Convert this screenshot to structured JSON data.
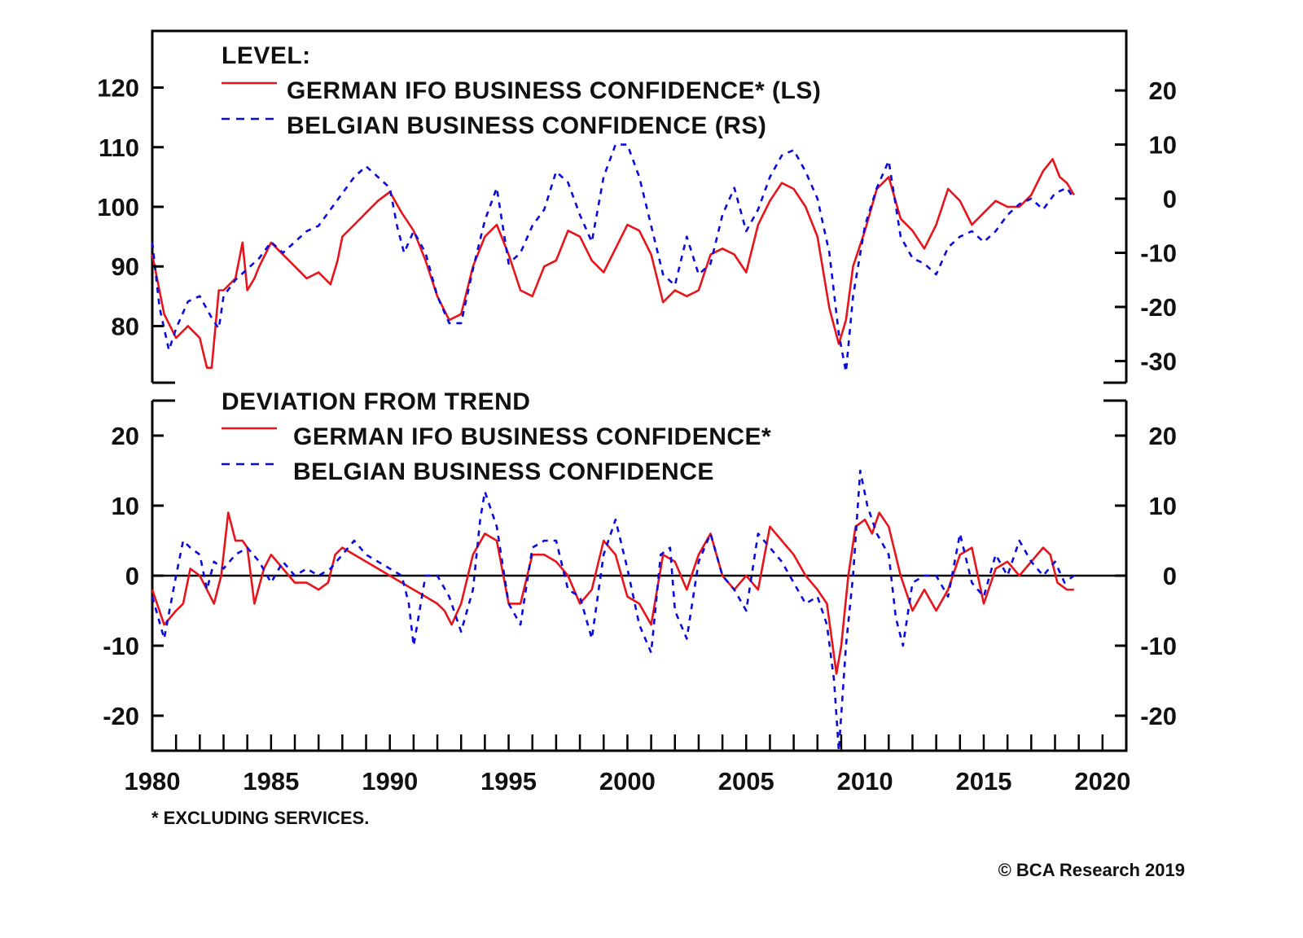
{
  "chart_data": [
    {
      "type": "line",
      "panel": "top",
      "title": "LEVEL:",
      "xlabel": "",
      "x_ticks": [
        "1980",
        "1985",
        "1990",
        "1995",
        "2000",
        "2005",
        "2010",
        "2015",
        "2020"
      ],
      "xlim": [
        1980,
        2021
      ],
      "left_axis": {
        "ticks": [
          "120",
          "110",
          "100",
          "90",
          "80"
        ],
        "ylim": [
          70.5,
          129.5
        ]
      },
      "right_axis": {
        "ticks": [
          "20",
          "10",
          "0",
          "-10",
          "-20",
          "-30"
        ],
        "ylim": [
          -34,
          31
        ]
      },
      "grid": false,
      "legend_position": "top-left",
      "series": [
        {
          "name": "GERMAN IFO BUSINESS CONFIDENCE* (LS)",
          "axis": "left",
          "color": "#e8141b",
          "style": "solid",
          "x": [
            1980.0,
            1980.5,
            1981.0,
            1981.5,
            1982.0,
            1982.3,
            1982.5,
            1982.8,
            1983.0,
            1983.5,
            1983.8,
            1984.0,
            1984.3,
            1984.5,
            1985.0,
            1985.5,
            1986.0,
            1986.5,
            1987.0,
            1987.5,
            1987.8,
            1988.0,
            1988.5,
            1989.0,
            1989.5,
            1990.0,
            1990.5,
            1991.0,
            1991.5,
            1992.0,
            1992.5,
            1993.0,
            1993.5,
            1994.0,
            1994.5,
            1995.0,
            1995.5,
            1996.0,
            1996.5,
            1997.0,
            1997.5,
            1998.0,
            1998.5,
            1999.0,
            1999.5,
            2000.0,
            2000.5,
            2001.0,
            2001.5,
            2002.0,
            2002.5,
            2003.0,
            2003.5,
            2004.0,
            2004.5,
            2005.0,
            2005.5,
            2006.0,
            2006.5,
            2007.0,
            2007.5,
            2008.0,
            2008.5,
            2008.9,
            2009.2,
            2009.5,
            2010.0,
            2010.5,
            2011.0,
            2011.5,
            2012.0,
            2012.5,
            2013.0,
            2013.5,
            2014.0,
            2014.5,
            2015.0,
            2015.5,
            2016.0,
            2016.5,
            2017.0,
            2017.5,
            2017.9,
            2018.2,
            2018.5,
            2018.8
          ],
          "values": [
            92,
            82,
            78,
            80,
            78,
            73,
            73,
            86,
            86,
            88,
            94,
            86,
            88,
            90,
            94,
            92,
            90,
            88,
            89,
            87,
            91,
            95,
            97,
            99,
            101,
            102.5,
            99,
            96,
            91,
            85,
            81,
            82,
            90,
            95,
            97,
            92,
            86,
            85,
            90,
            91,
            96,
            95,
            91,
            89,
            93,
            97,
            96,
            92,
            84,
            86,
            85,
            86,
            92,
            93,
            92,
            89,
            97,
            101,
            104,
            103,
            100,
            95,
            83,
            77,
            81,
            90,
            96,
            103,
            105,
            98,
            96,
            93,
            97,
            103,
            101,
            97,
            99,
            101,
            100,
            100,
            102,
            106,
            108,
            105,
            104,
            102
          ]
        },
        {
          "name": "BELGIAN BUSINESS CONFIDENCE (RS)",
          "axis": "right",
          "color": "#0a0adc",
          "style": "dashed",
          "x": [
            1980.0,
            1980.3,
            1980.7,
            1981.0,
            1981.5,
            1982.0,
            1982.5,
            1982.8,
            1983.0,
            1983.5,
            1984.0,
            1984.5,
            1985.0,
            1985.5,
            1986.0,
            1986.5,
            1987.0,
            1987.5,
            1988.0,
            1988.5,
            1989.0,
            1989.5,
            1990.0,
            1990.3,
            1990.6,
            1991.0,
            1991.5,
            1992.0,
            1992.5,
            1993.0,
            1993.5,
            1994.0,
            1994.5,
            1995.0,
            1995.5,
            1996.0,
            1996.5,
            1997.0,
            1997.5,
            1998.0,
            1998.5,
            1999.0,
            1999.5,
            2000.0,
            2000.5,
            2001.0,
            2001.5,
            2002.0,
            2002.5,
            2003.0,
            2003.5,
            2004.0,
            2004.5,
            2005.0,
            2005.5,
            2006.0,
            2006.5,
            2007.0,
            2007.5,
            2008.0,
            2008.5,
            2008.9,
            2009.2,
            2009.5,
            2010.0,
            2010.5,
            2011.0,
            2011.5,
            2012.0,
            2012.5,
            2013.0,
            2013.5,
            2014.0,
            2014.5,
            2015.0,
            2015.5,
            2016.0,
            2016.5,
            2017.0,
            2017.5,
            2018.0,
            2018.5,
            2018.8
          ],
          "values": [
            -8,
            -20,
            -28,
            -24,
            -19,
            -18,
            -22,
            -24,
            -18,
            -15,
            -13,
            -11,
            -8,
            -10,
            -8,
            -6,
            -5,
            -2,
            1,
            4,
            6,
            4,
            2,
            -5,
            -10,
            -6,
            -10,
            -18,
            -23,
            -23,
            -13,
            -4,
            2,
            -12,
            -10,
            -5,
            -2,
            5,
            3,
            -3,
            -8,
            4,
            10,
            10,
            4,
            -5,
            -14,
            -16,
            -7,
            -14,
            -12,
            -3,
            2,
            -6,
            -2,
            4,
            8,
            9,
            5,
            0,
            -10,
            -25,
            -32,
            -18,
            -5,
            2,
            7,
            -7,
            -11,
            -12,
            -14,
            -9,
            -7,
            -6,
            -8,
            -6,
            -3,
            -1,
            0,
            -2,
            1,
            2,
            0
          ]
        }
      ]
    },
    {
      "type": "line",
      "panel": "bottom",
      "title": "DEVIATION FROM TREND",
      "xlabel": "",
      "x_ticks": [
        "1980",
        "1985",
        "1990",
        "1995",
        "2000",
        "2005",
        "2010",
        "2015",
        "2020"
      ],
      "xlim": [
        1980,
        2021
      ],
      "left_axis": {
        "ticks": [
          "20",
          "10",
          "0",
          "-10",
          "-20"
        ],
        "ylim": [
          -25,
          25
        ]
      },
      "right_axis": {
        "ticks": [
          "20",
          "10",
          "0",
          "-10",
          "-20"
        ],
        "ylim": [
          -25,
          25
        ]
      },
      "reference_line": 0,
      "grid": false,
      "legend_position": "top-left",
      "series": [
        {
          "name": "GERMAN IFO BUSINESS CONFIDENCE*",
          "color": "#e8141b",
          "style": "solid",
          "x": [
            1980.0,
            1980.5,
            1981.0,
            1981.3,
            1981.6,
            1982.0,
            1982.3,
            1982.6,
            1982.9,
            1983.2,
            1983.5,
            1983.8,
            1984.0,
            1984.3,
            1984.7,
            1985.0,
            1985.5,
            1986.0,
            1986.5,
            1987.0,
            1987.4,
            1987.7,
            1988.0,
            1988.5,
            1989.0,
            1989.5,
            1990.0,
            1990.5,
            1991.0,
            1991.5,
            1992.0,
            1992.3,
            1992.6,
            1993.0,
            1993.5,
            1994.0,
            1994.5,
            1995.0,
            1995.5,
            1996.0,
            1996.5,
            1997.0,
            1997.5,
            1998.0,
            1998.5,
            1999.0,
            1999.5,
            2000.0,
            2000.5,
            2001.0,
            2001.5,
            2002.0,
            2002.5,
            2003.0,
            2003.5,
            2004.0,
            2004.5,
            2005.0,
            2005.5,
            2006.0,
            2006.5,
            2007.0,
            2007.5,
            2008.0,
            2008.4,
            2008.8,
            2009.0,
            2009.3,
            2009.6,
            2010.0,
            2010.3,
            2010.6,
            2011.0,
            2011.5,
            2012.0,
            2012.5,
            2013.0,
            2013.5,
            2014.0,
            2014.5,
            2015.0,
            2015.5,
            2016.0,
            2016.5,
            2017.0,
            2017.5,
            2017.8,
            2018.1,
            2018.5,
            2018.8
          ],
          "values": [
            -2,
            -7,
            -5,
            -4,
            1,
            0,
            -2,
            -4,
            0,
            9,
            5,
            5,
            4,
            -4,
            1,
            3,
            1,
            -1,
            -1,
            -2,
            -1,
            3,
            4,
            3,
            2,
            1,
            0,
            -1,
            -2,
            -3,
            -4,
            -5,
            -7,
            -4,
            3,
            6,
            5,
            -4,
            -4,
            3,
            3,
            2,
            0,
            -4,
            -2,
            5,
            3,
            -3,
            -4,
            -7,
            3,
            2,
            -2,
            3,
            6,
            0,
            -2,
            0,
            -2,
            7,
            5,
            3,
            0,
            -2,
            -4,
            -14,
            -10,
            0,
            7,
            8,
            6,
            9,
            7,
            0,
            -5,
            -2,
            -5,
            -2,
            3,
            4,
            -4,
            1,
            2,
            0,
            2,
            4,
            3,
            -1,
            -2,
            -2
          ]
        },
        {
          "name": "BELGIAN BUSINESS CONFIDENCE",
          "color": "#0a0adc",
          "style": "dashed",
          "x": [
            1980.0,
            1980.5,
            1981.0,
            1981.3,
            1981.6,
            1982.0,
            1982.3,
            1982.6,
            1983.0,
            1983.5,
            1984.0,
            1984.5,
            1985.0,
            1985.5,
            1986.0,
            1986.5,
            1987.0,
            1987.5,
            1988.0,
            1988.5,
            1989.0,
            1989.5,
            1990.0,
            1990.5,
            1990.8,
            1991.0,
            1991.5,
            1992.0,
            1992.5,
            1993.0,
            1993.5,
            1993.8,
            1994.0,
            1994.5,
            1995.0,
            1995.5,
            1996.0,
            1996.5,
            1997.0,
            1997.5,
            1998.0,
            1998.5,
            1999.0,
            1999.5,
            2000.0,
            2000.5,
            2001.0,
            2001.4,
            2001.8,
            2002.0,
            2002.5,
            2003.0,
            2003.5,
            2004.0,
            2004.5,
            2005.0,
            2005.5,
            2006.0,
            2006.5,
            2007.0,
            2007.5,
            2008.0,
            2008.4,
            2008.7,
            2008.9,
            2009.2,
            2009.5,
            2009.8,
            2010.1,
            2010.5,
            2011.0,
            2011.3,
            2011.6,
            2012.0,
            2012.5,
            2013.0,
            2013.5,
            2014.0,
            2014.5,
            2015.0,
            2015.5,
            2016.0,
            2016.5,
            2017.0,
            2017.5,
            2018.0,
            2018.4,
            2018.8
          ],
          "values": [
            -3,
            -9,
            0,
            5,
            4,
            3,
            -2,
            2,
            1,
            3,
            4,
            2,
            -1,
            2,
            0,
            1,
            0,
            1,
            3,
            5,
            3,
            2,
            1,
            0,
            -4,
            -10,
            0,
            0,
            -3,
            -8,
            -2,
            8,
            12,
            7,
            -4,
            -7,
            4,
            5,
            5,
            -2,
            -3,
            -9,
            3,
            8,
            1,
            -7,
            -11,
            3,
            4,
            -5,
            -9,
            2,
            6,
            0,
            -2,
            -5,
            6,
            4,
            2,
            -1,
            -4,
            -3,
            -7,
            -15,
            -25,
            -10,
            0,
            15,
            10,
            6,
            3,
            -6,
            -10,
            -1,
            0,
            0,
            -3,
            6,
            -1,
            -3,
            3,
            0,
            5,
            2,
            0,
            2,
            -1,
            0
          ]
        }
      ]
    }
  ],
  "legends": {
    "top": {
      "heading": "LEVEL:",
      "items": [
        {
          "label": "GERMAN IFO BUSINESS CONFIDENCE* (LS)",
          "color": "#e8141b",
          "style": "solid"
        },
        {
          "label": "BELGIAN BUSINESS CONFIDENCE (RS)",
          "color": "#0a0adc",
          "style": "dashed"
        }
      ]
    },
    "bottom": {
      "heading": "DEVIATION FROM TREND",
      "items": [
        {
          "label": "GERMAN IFO BUSINESS CONFIDENCE*",
          "color": "#e8141b",
          "style": "solid"
        },
        {
          "label": "BELGIAN BUSINESS CONFIDENCE",
          "color": "#0a0adc",
          "style": "dashed"
        }
      ]
    }
  },
  "footnote": "* EXCLUDING SERVICES.",
  "copyright": "© BCA Research 2019"
}
